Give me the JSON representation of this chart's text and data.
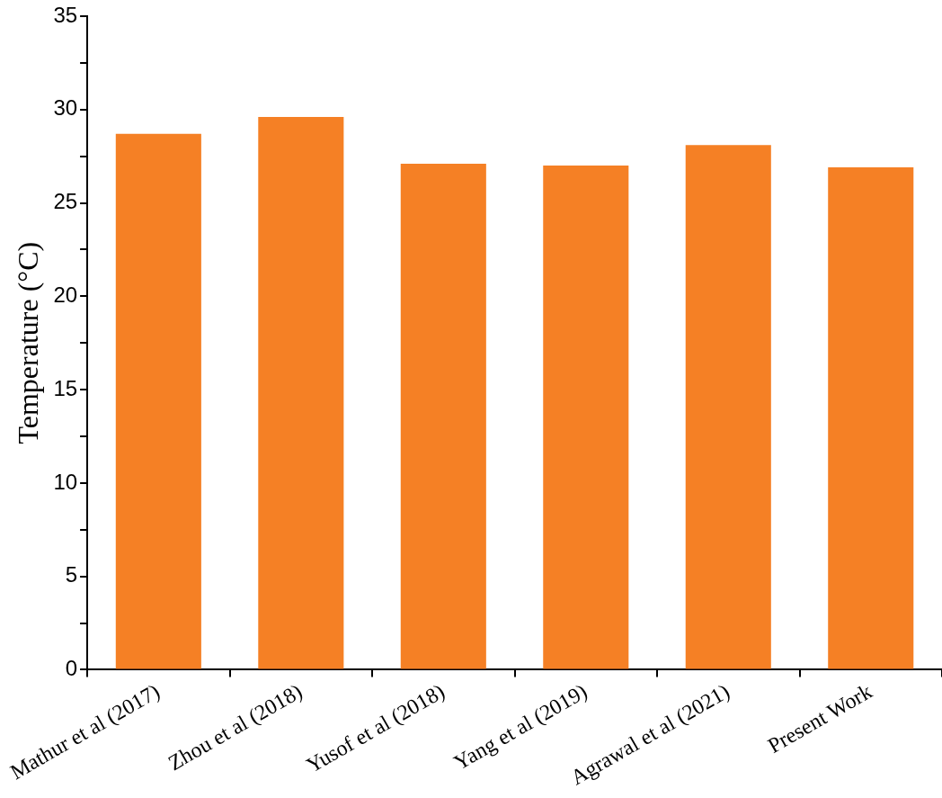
{
  "chart_data": {
    "type": "bar",
    "ylabel": "Temperature (°C)",
    "categories": [
      "Mathur et al (2017)",
      "Zhou et al (2018)",
      "Yusof et al (2018)",
      "Yang et al (2019)",
      "Agrawal et al (2021)",
      "Present Work"
    ],
    "values": [
      28.7,
      29.6,
      27.1,
      27.0,
      28.1,
      26.9
    ],
    "color": "#f58025",
    "ylim": [
      0,
      35
    ],
    "yticks": [
      0,
      {
        "value": 2.5,
        "label": null
      },
      5,
      {
        "value": 7.5,
        "label": null
      },
      10,
      {
        "value": 12.5,
        "label": null
      },
      15,
      {
        "value": 17.5,
        "label": null
      },
      20,
      {
        "value": 22.5,
        "label": null
      },
      25,
      {
        "value": 27.5,
        "label": null
      },
      30,
      {
        "value": 32.5,
        "label": null
      },
      35
    ],
    "grid": false,
    "legend": false
  }
}
